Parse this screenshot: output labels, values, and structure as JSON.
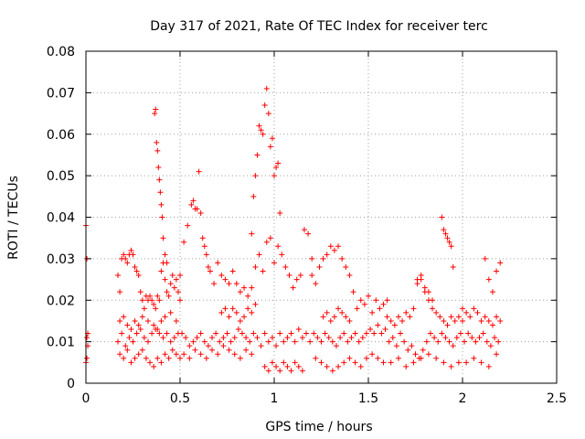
{
  "chart_data": {
    "type": "scatter",
    "title": "Day 317 of 2021, Rate Of TEC Index for receiver terc",
    "xlabel": "GPS time / hours",
    "ylabel": "ROTI / TECUs",
    "xlim": [
      0,
      2.5
    ],
    "ylim": [
      0,
      0.08
    ],
    "x_ticks": [
      "0",
      "0.5",
      "1",
      "1.5",
      "2",
      "2.5"
    ],
    "y_ticks": [
      "0",
      "0.01",
      "0.02",
      "0.03",
      "0.04",
      "0.05",
      "0.06",
      "0.07",
      "0.08"
    ],
    "grid": true,
    "marker": "+",
    "color": "#ff0000",
    "series": [
      {
        "x": [
          0.0,
          0.005,
          0.01,
          0.0,
          0.005,
          0.01,
          0.005,
          0.17,
          0.18,
          0.19,
          0.2,
          0.21,
          0.22,
          0.23,
          0.24,
          0.25,
          0.26,
          0.27,
          0.28,
          0.29,
          0.3,
          0.31,
          0.32,
          0.33,
          0.34,
          0.35,
          0.36,
          0.37,
          0.38,
          0.39,
          0.4,
          0.41,
          0.42,
          0.43,
          0.44,
          0.45,
          0.46,
          0.47,
          0.48,
          0.49,
          0.5,
          0.17,
          0.19,
          0.21,
          0.23,
          0.25,
          0.27,
          0.29,
          0.31,
          0.33,
          0.35,
          0.37,
          0.39,
          0.41,
          0.43,
          0.45,
          0.47,
          0.49,
          0.18,
          0.2,
          0.22,
          0.24,
          0.26,
          0.28,
          0.3,
          0.32,
          0.34,
          0.36,
          0.38,
          0.4,
          0.42,
          0.44,
          0.46,
          0.48,
          0.5,
          0.18,
          0.2,
          0.22,
          0.24,
          0.26,
          0.28,
          0.3,
          0.33,
          0.36,
          0.38,
          0.4,
          0.42,
          0.45,
          0.48,
          0.365,
          0.37,
          0.375,
          0.38,
          0.385,
          0.39,
          0.395,
          0.4,
          0.405,
          0.41,
          0.42,
          0.43,
          0.5,
          0.52,
          0.54,
          0.56,
          0.57,
          0.58,
          0.59,
          0.6,
          0.61,
          0.62,
          0.63,
          0.64,
          0.65,
          0.66,
          0.68,
          0.7,
          0.72,
          0.74,
          0.76,
          0.78,
          0.8,
          0.82,
          0.84,
          0.86,
          0.88,
          0.51,
          0.53,
          0.55,
          0.57,
          0.59,
          0.61,
          0.63,
          0.65,
          0.67,
          0.69,
          0.71,
          0.73,
          0.75,
          0.77,
          0.79,
          0.81,
          0.83,
          0.85,
          0.87,
          0.89,
          0.52,
          0.55,
          0.58,
          0.61,
          0.64,
          0.67,
          0.7,
          0.73,
          0.76,
          0.79,
          0.82,
          0.85,
          0.88,
          0.72,
          0.74,
          0.76,
          0.78,
          0.8,
          0.82,
          0.84,
          0.86,
          0.88,
          0.9,
          0.88,
          0.89,
          0.9,
          0.91,
          0.92,
          0.93,
          0.94,
          0.95,
          0.96,
          0.97,
          0.98,
          0.99,
          1.0,
          1.01,
          1.02,
          1.03,
          0.9,
          0.92,
          0.94,
          0.96,
          0.98,
          1.0,
          1.02,
          1.04,
          1.06,
          1.08,
          1.1,
          1.12,
          1.14,
          1.16,
          1.18,
          1.2,
          0.91,
          0.93,
          0.95,
          0.97,
          0.99,
          1.01,
          1.03,
          1.05,
          1.07,
          1.09,
          1.11,
          1.13,
          1.15,
          1.17,
          1.19,
          0.95,
          0.97,
          0.99,
          1.01,
          1.03,
          1.05,
          1.07,
          1.09,
          1.11,
          1.13,
          1.15,
          1.2,
          1.22,
          1.24,
          1.26,
          1.28,
          1.3,
          1.32,
          1.34,
          1.36,
          1.38,
          1.4,
          1.42,
          1.44,
          1.46,
          1.48,
          1.5,
          1.52,
          1.54,
          1.56,
          1.58,
          1.6,
          1.21,
          1.23,
          1.25,
          1.27,
          1.29,
          1.31,
          1.33,
          1.35,
          1.37,
          1.39,
          1.41,
          1.43,
          1.45,
          1.47,
          1.49,
          1.51,
          1.53,
          1.55,
          1.57,
          1.59,
          1.22,
          1.25,
          1.28,
          1.31,
          1.34,
          1.37,
          1.4,
          1.43,
          1.46,
          1.49,
          1.52,
          1.55,
          1.58,
          1.26,
          1.28,
          1.3,
          1.32,
          1.34,
          1.36,
          1.38,
          1.4,
          1.6,
          1.62,
          1.64,
          1.66,
          1.68,
          1.7,
          1.72,
          1.74,
          1.76,
          1.78,
          1.8,
          1.82,
          1.84,
          1.86,
          1.88,
          1.9,
          1.92,
          1.94,
          1.96,
          1.98,
          2.0,
          1.61,
          1.63,
          1.65,
          1.67,
          1.69,
          1.71,
          1.73,
          1.75,
          1.77,
          1.79,
          1.81,
          1.83,
          1.85,
          1.87,
          1.89,
          1.91,
          1.93,
          1.95,
          1.97,
          1.99,
          1.62,
          1.66,
          1.7,
          1.74,
          1.78,
          1.82,
          1.86,
          1.9,
          1.94,
          1.98,
          1.76,
          1.78,
          1.8,
          1.82,
          1.84,
          1.89,
          1.9,
          1.91,
          1.92,
          1.93,
          1.94,
          1.95,
          2.0,
          2.02,
          2.04,
          2.06,
          2.08,
          2.1,
          2.12,
          2.14,
          2.16,
          2.18,
          2.2,
          2.01,
          2.03,
          2.05,
          2.07,
          2.09,
          2.11,
          2.13,
          2.15,
          2.17,
          2.19,
          2.02,
          2.06,
          2.1,
          2.14,
          2.18,
          2.12,
          2.14,
          2.16,
          2.18,
          2.2
        ],
        "y": [
          0.038,
          0.03,
          0.012,
          0.005,
          0.006,
          0.009,
          0.011,
          0.026,
          0.022,
          0.03,
          0.031,
          0.03,
          0.029,
          0.031,
          0.032,
          0.031,
          0.028,
          0.027,
          0.026,
          0.022,
          0.02,
          0.018,
          0.021,
          0.02,
          0.021,
          0.02,
          0.019,
          0.018,
          0.021,
          0.02,
          0.027,
          0.029,
          0.025,
          0.022,
          0.021,
          0.024,
          0.026,
          0.023,
          0.025,
          0.022,
          0.02,
          0.01,
          0.012,
          0.009,
          0.011,
          0.01,
          0.012,
          0.013,
          0.011,
          0.01,
          0.012,
          0.013,
          0.012,
          0.011,
          0.012,
          0.01,
          0.011,
          0.012,
          0.007,
          0.006,
          0.008,
          0.005,
          0.006,
          0.007,
          0.008,
          0.006,
          0.005,
          0.004,
          0.006,
          0.005,
          0.007,
          0.006,
          0.008,
          0.007,
          0.006,
          0.015,
          0.016,
          0.014,
          0.013,
          0.015,
          0.014,
          0.016,
          0.015,
          0.014,
          0.013,
          0.015,
          0.016,
          0.017,
          0.015,
          0.065,
          0.066,
          0.058,
          0.056,
          0.052,
          0.049,
          0.046,
          0.043,
          0.04,
          0.035,
          0.031,
          0.029,
          0.026,
          0.034,
          0.038,
          0.043,
          0.044,
          0.042,
          0.042,
          0.051,
          0.041,
          0.035,
          0.033,
          0.031,
          0.028,
          0.027,
          0.024,
          0.029,
          0.026,
          0.025,
          0.024,
          0.027,
          0.024,
          0.022,
          0.023,
          0.021,
          0.023,
          0.012,
          0.011,
          0.009,
          0.01,
          0.011,
          0.012,
          0.01,
          0.009,
          0.011,
          0.012,
          0.01,
          0.011,
          0.012,
          0.01,
          0.011,
          0.013,
          0.012,
          0.011,
          0.01,
          0.012,
          0.007,
          0.006,
          0.008,
          0.007,
          0.006,
          0.008,
          0.007,
          0.009,
          0.008,
          0.007,
          0.006,
          0.008,
          0.007,
          0.017,
          0.018,
          0.016,
          0.018,
          0.017,
          0.015,
          0.016,
          0.018,
          0.017,
          0.019,
          0.036,
          0.045,
          0.05,
          0.055,
          0.062,
          0.061,
          0.06,
          0.067,
          0.071,
          0.065,
          0.057,
          0.059,
          0.05,
          0.052,
          0.053,
          0.041,
          0.028,
          0.031,
          0.027,
          0.034,
          0.035,
          0.029,
          0.033,
          0.031,
          0.028,
          0.026,
          0.023,
          0.025,
          0.026,
          0.037,
          0.036,
          0.03,
          0.011,
          0.009,
          0.012,
          0.01,
          0.011,
          0.009,
          0.012,
          0.01,
          0.011,
          0.012,
          0.01,
          0.013,
          0.011,
          0.012,
          0.01,
          0.004,
          0.003,
          0.005,
          0.004,
          0.003,
          0.005,
          0.004,
          0.003,
          0.005,
          0.004,
          0.003,
          0.026,
          0.024,
          0.028,
          0.03,
          0.031,
          0.033,
          0.032,
          0.033,
          0.03,
          0.028,
          0.026,
          0.022,
          0.018,
          0.02,
          0.019,
          0.021,
          0.017,
          0.02,
          0.018,
          0.019,
          0.02,
          0.012,
          0.011,
          0.01,
          0.012,
          0.011,
          0.01,
          0.009,
          0.011,
          0.012,
          0.01,
          0.011,
          0.012,
          0.01,
          0.011,
          0.012,
          0.013,
          0.012,
          0.014,
          0.012,
          0.013,
          0.006,
          0.005,
          0.004,
          0.003,
          0.004,
          0.005,
          0.006,
          0.005,
          0.004,
          0.006,
          0.007,
          0.006,
          0.005,
          0.016,
          0.017,
          0.015,
          0.016,
          0.018,
          0.017,
          0.016,
          0.015,
          0.016,
          0.015,
          0.014,
          0.016,
          0.015,
          0.017,
          0.016,
          0.018,
          0.025,
          0.026,
          0.022,
          0.02,
          0.018,
          0.017,
          0.016,
          0.015,
          0.014,
          0.016,
          0.015,
          0.016,
          0.015,
          0.01,
          0.011,
          0.009,
          0.012,
          0.01,
          0.008,
          0.009,
          0.007,
          0.006,
          0.008,
          0.01,
          0.012,
          0.011,
          0.01,
          0.012,
          0.011,
          0.01,
          0.009,
          0.011,
          0.012,
          0.005,
          0.006,
          0.004,
          0.005,
          0.006,
          0.007,
          0.006,
          0.005,
          0.004,
          0.005,
          0.024,
          0.025,
          0.023,
          0.022,
          0.02,
          0.04,
          0.037,
          0.036,
          0.035,
          0.034,
          0.033,
          0.028,
          0.018,
          0.017,
          0.016,
          0.018,
          0.017,
          0.015,
          0.016,
          0.015,
          0.014,
          0.016,
          0.015,
          0.01,
          0.012,
          0.011,
          0.01,
          0.011,
          0.012,
          0.01,
          0.009,
          0.011,
          0.01,
          0.005,
          0.006,
          0.005,
          0.004,
          0.007,
          0.03,
          0.025,
          0.022,
          0.027,
          0.029
        ]
      }
    ]
  }
}
